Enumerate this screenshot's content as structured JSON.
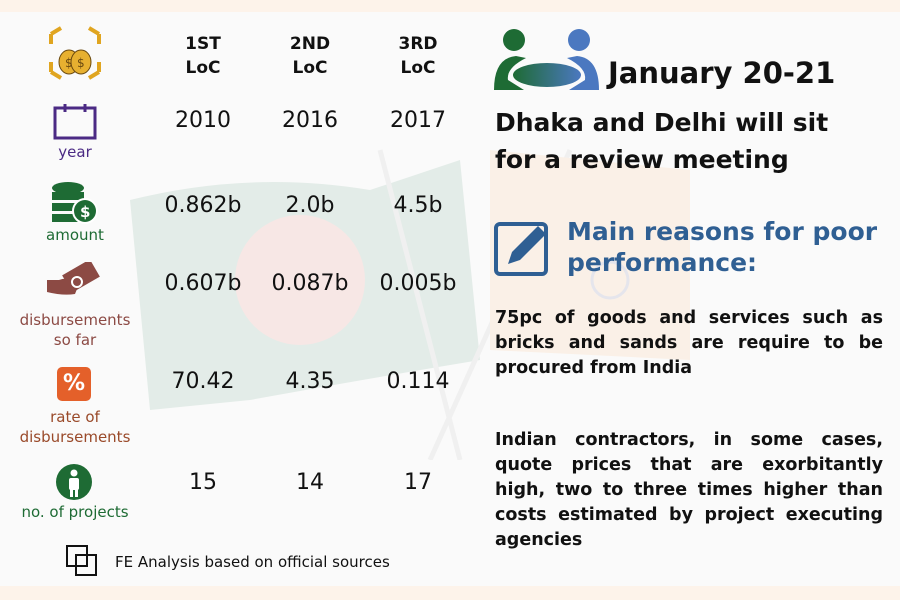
{
  "columns": [
    "1ST LoC",
    "2ND LoC",
    "3RD LoC"
  ],
  "column_lines": [
    [
      "1ST",
      "LoC"
    ],
    [
      "2ND",
      "LoC"
    ],
    [
      "3RD",
      "LoC"
    ]
  ],
  "rows": [
    {
      "label": "year",
      "icon": "calendar-icon",
      "color": "#4b2a84",
      "values": [
        "2010",
        "2016",
        "2017"
      ]
    },
    {
      "label": "amount",
      "icon": "coins-icon",
      "color": "#1e6b34",
      "values": [
        "0.862b",
        "2.0b",
        "4.5b"
      ]
    },
    {
      "label_lines": [
        "disbursements",
        "so far"
      ],
      "icon": "hand-money-icon",
      "color": "#8c4a44",
      "values": [
        "0.607b",
        "0.087b",
        "0.005b"
      ]
    },
    {
      "label_lines": [
        "rate of",
        "disbursements"
      ],
      "icon": "percent-icon",
      "color": "#9a4a2a",
      "values": [
        "70.42",
        "4.35",
        "0.114"
      ]
    },
    {
      "label": "no. of projects",
      "icon": "worker-icon",
      "color": "#1e6b34",
      "values": [
        "15",
        "14",
        "17"
      ]
    }
  ],
  "source": "FE Analysis based on official sources",
  "meeting": {
    "date": "January 20-21",
    "headline_lines": [
      "Dhaka and Delhi will sit",
      "for a review meeting"
    ]
  },
  "reasons": {
    "title_lines": [
      "Main reasons for poor",
      "performance:"
    ],
    "items": [
      "75pc of goods and services such as bricks and sands are require to be procured from India",
      "Indian contractors, in some cases, quote prices that are exorbitantly high, two to three times higher than costs estimated by project executing agencies"
    ]
  },
  "colors": {
    "accent_blue": "#2f5f93",
    "green": "#1e6b34",
    "band": "#fdf3ea"
  }
}
